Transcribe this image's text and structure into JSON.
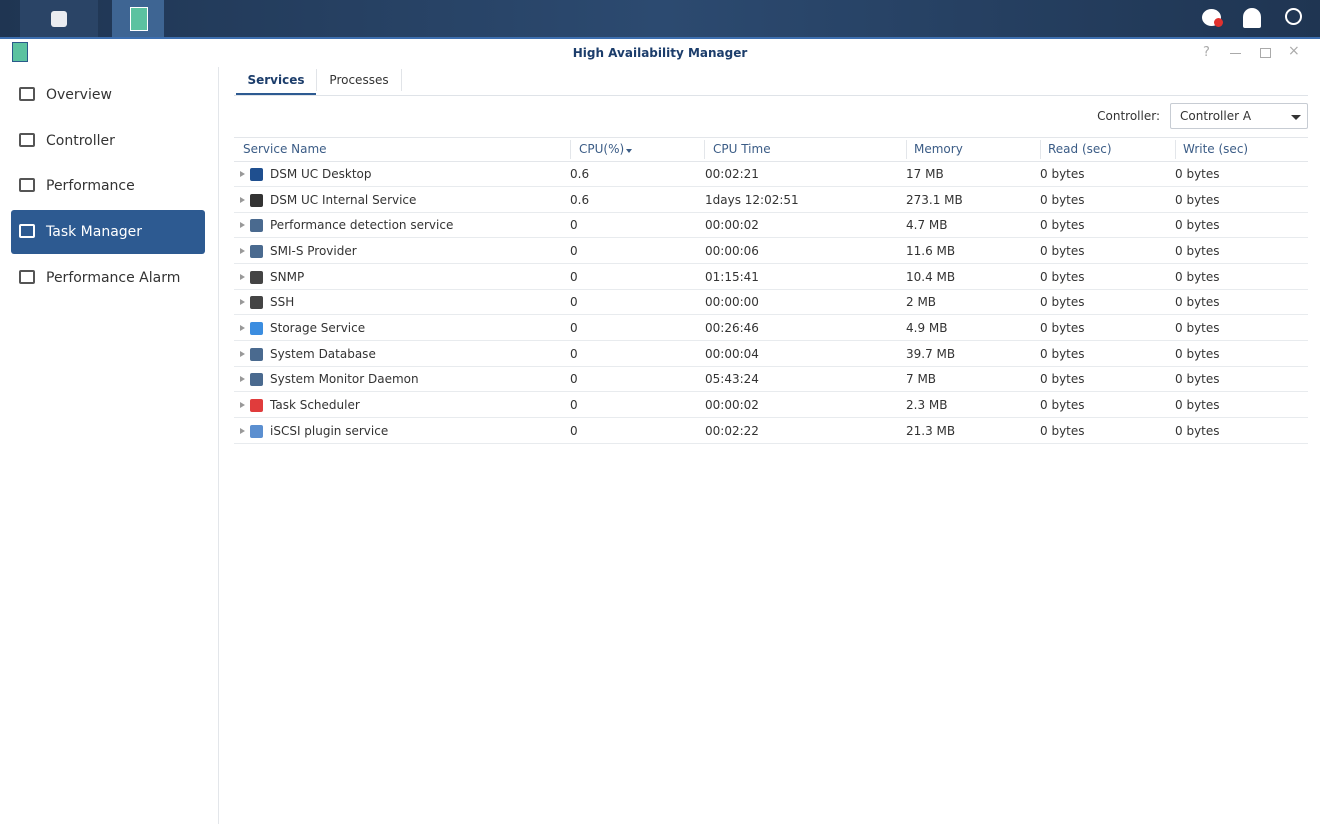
{
  "window": {
    "title": "High Availability Manager"
  },
  "sidebar": {
    "items": [
      "Overview",
      "Controller",
      "Performance",
      "Task Manager",
      "Performance Alarm"
    ]
  },
  "tabs": [
    "Services",
    "Processes"
  ],
  "controller": {
    "label": "Controller:",
    "selected": "Controller A"
  },
  "table": {
    "columns": [
      "Service Name",
      "CPU(%)",
      "CPU Time",
      "Memory",
      "Read (sec)",
      "Write (sec)"
    ],
    "rows": [
      [
        "DSM UC Desktop",
        0.6,
        "00:02:21",
        "17 MB",
        "0 bytes",
        "0 bytes"
      ],
      [
        "DSM UC Internal Service",
        0.6,
        "1days 12:02:51",
        "273.1 MB",
        "0 bytes",
        "0 bytes"
      ],
      [
        "Performance detection service",
        0,
        "00:00:02",
        "4.7 MB",
        "0 bytes",
        "0 bytes"
      ],
      [
        "SMI-S Provider",
        0,
        "00:00:06",
        "11.6 MB",
        "0 bytes",
        "0 bytes"
      ],
      [
        "SNMP",
        0,
        "01:15:41",
        "10.4 MB",
        "0 bytes",
        "0 bytes"
      ],
      [
        "SSH",
        0,
        "00:00:00",
        "2 MB",
        "0 bytes",
        "0 bytes"
      ],
      [
        "Storage Service",
        0,
        "00:26:46",
        "4.9 MB",
        "0 bytes",
        "0 bytes"
      ],
      [
        "System Database",
        0,
        "00:00:04",
        "39.7 MB",
        "0 bytes",
        "0 bytes"
      ],
      [
        "System Monitor Daemon",
        0,
        "05:43:24",
        "7 MB",
        "0 bytes",
        "0 bytes"
      ],
      [
        "Task Scheduler",
        0,
        "00:00:02",
        "2.3 MB",
        "0 bytes",
        "0 bytes"
      ],
      [
        "iSCSI plugin service",
        0,
        "00:02:22",
        "21.3 MB",
        "0 bytes",
        "0 bytes"
      ]
    ]
  }
}
